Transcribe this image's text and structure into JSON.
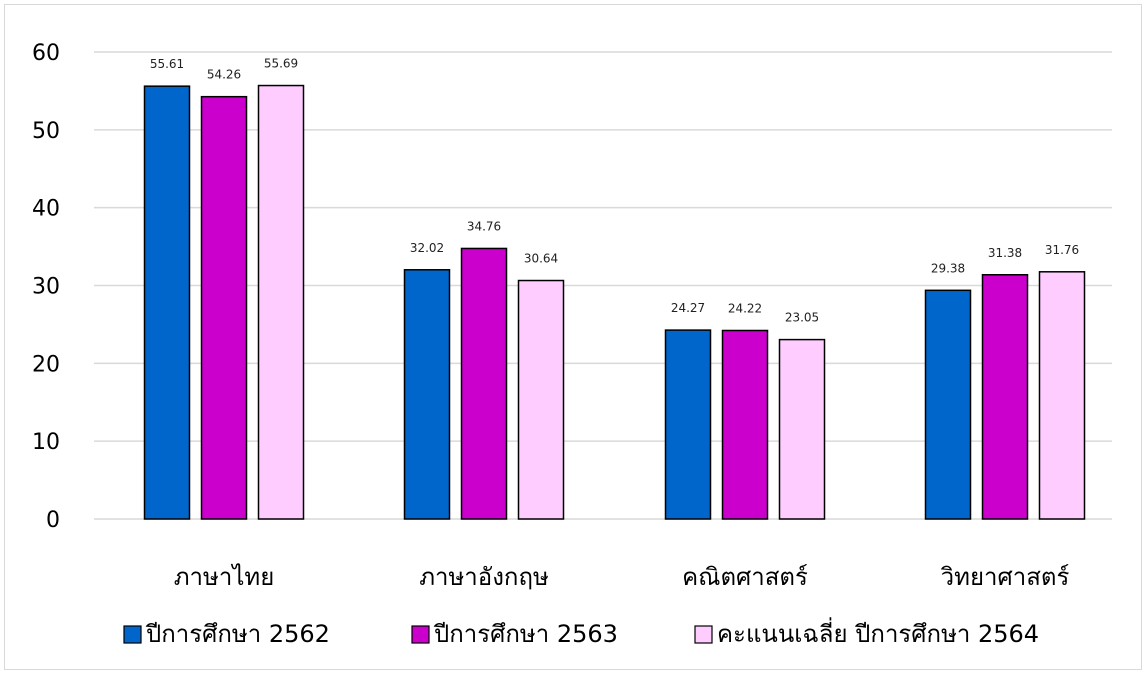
{
  "chart_data": {
    "type": "bar",
    "categories": [
      "ภาษาไทย",
      "ภาษาอังกฤษ",
      "คณิตศาสตร์",
      "วิทยาศาสตร์"
    ],
    "series": [
      {
        "name": "ปีการศึกษา 2562",
        "color": "#0066cc",
        "values": [
          55.61,
          32.02,
          24.27,
          29.38
        ]
      },
      {
        "name": "ปีการศึกษา 2563",
        "color": "#cc00cc",
        "values": [
          54.26,
          34.76,
          24.22,
          31.38
        ]
      },
      {
        "name": "คะแนนเฉลี่ย ปีการศึกษา 2564",
        "color": "#ffccff",
        "values": [
          55.69,
          30.64,
          23.05,
          31.76
        ]
      }
    ],
    "ylim": [
      0,
      60
    ],
    "yticks": [
      0,
      10,
      20,
      30,
      40,
      50,
      60
    ],
    "grid": true,
    "legend": "bottom",
    "data_labels": true
  }
}
